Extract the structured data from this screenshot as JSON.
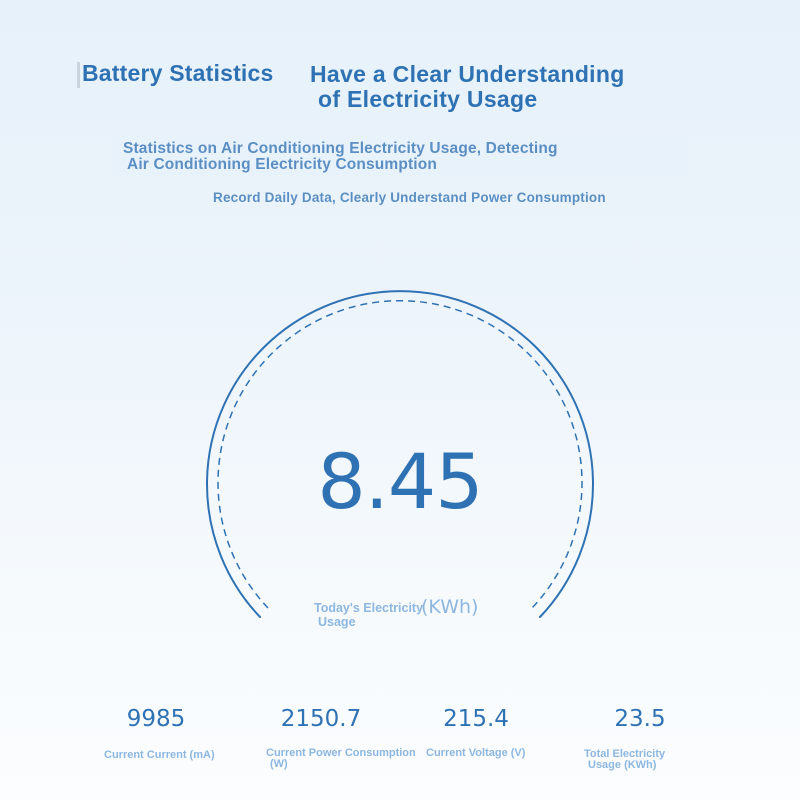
{
  "header": {
    "left_title": "Battery Statistics",
    "right_title_line1": "Have a Clear Understanding",
    "right_title_line2": "of Electricity Usage"
  },
  "subtitle": {
    "line1": "Statistics on Air Conditioning Electricity Usage, Detecting",
    "line2": "Air Conditioning Electricity Consumption",
    "tagline": "Record Daily Data, Clearly Understand Power Consumption"
  },
  "gauge": {
    "value": "8.45",
    "label_line1": "Today's Electricity",
    "label_line2": "Usage",
    "unit": "(KWh)",
    "accent_color": "#2f72b4"
  },
  "stats": [
    {
      "value": "9985",
      "label_line1": "Current Current (mA)",
      "label_line2": ""
    },
    {
      "value": "2150.7",
      "label_line1": "Current Power Consumption",
      "label_line2": "(W)"
    },
    {
      "value": "215.4",
      "label_line1": "Current Voltage (V)",
      "label_line2": ""
    },
    {
      "value": "23.5",
      "label_line1": "Total Electricity",
      "label_line2": "Usage (KWh)"
    }
  ]
}
